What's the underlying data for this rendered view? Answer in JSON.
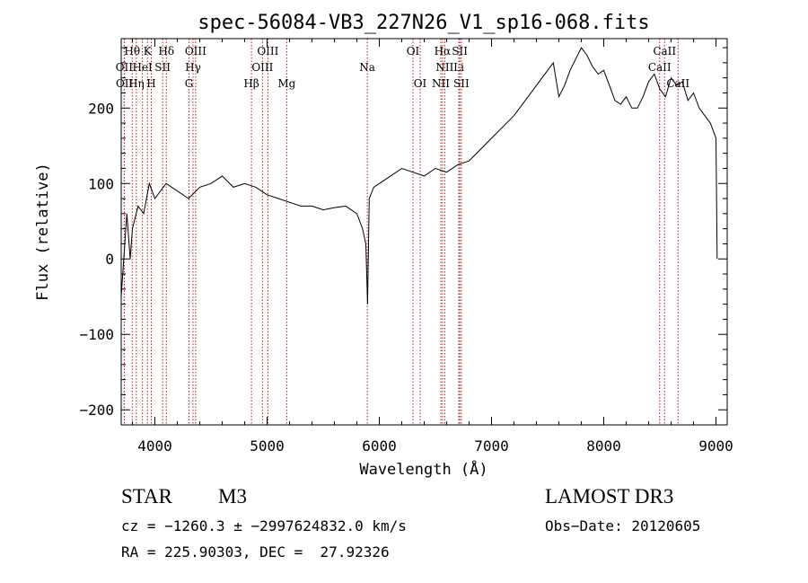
{
  "chart_data": {
    "type": "line",
    "title": "spec-56084-VB3_227N26_V1_sp16-068.fits",
    "xlabel": "Wavelength (Å)",
    "ylabel": "Flux (relative)",
    "xlim": [
      3700,
      9100
    ],
    "ylim": [
      -220,
      292
    ],
    "grid": false,
    "x_ticks": [
      4000,
      5000,
      6000,
      7000,
      8000,
      9000
    ],
    "y_ticks": [
      -200,
      -100,
      0,
      100,
      200
    ],
    "series": [
      {
        "x": [
          3700,
          3750,
          3780,
          3800,
          3850,
          3900,
          3950,
          4000,
          4100,
          4200,
          4300,
          4400,
          4500,
          4600,
          4700,
          4800,
          4900,
          5000,
          5100,
          5200,
          5300,
          5400,
          5500,
          5600,
          5700,
          5800,
          5850,
          5880,
          5895,
          5910,
          5950,
          6000,
          6100,
          6200,
          6300,
          6400,
          6500,
          6600,
          6700,
          6800,
          6900,
          7000,
          7100,
          7200,
          7300,
          7400,
          7500,
          7550,
          7600,
          7650,
          7700,
          7750,
          7800,
          7850,
          7900,
          7950,
          8000,
          8050,
          8100,
          8150,
          8200,
          8250,
          8300,
          8350,
          8400,
          8450,
          8500,
          8550,
          8600,
          8650,
          8700,
          8750,
          8800,
          8850,
          8900,
          8950,
          9000,
          9010
        ],
        "y": [
          -50,
          60,
          0,
          40,
          70,
          60,
          100,
          80,
          100,
          90,
          80,
          95,
          100,
          110,
          95,
          100,
          95,
          85,
          80,
          75,
          70,
          70,
          65,
          68,
          70,
          60,
          40,
          20,
          -60,
          80,
          95,
          100,
          110,
          120,
          115,
          110,
          120,
          115,
          125,
          130,
          145,
          160,
          175,
          190,
          210,
          230,
          250,
          260,
          215,
          230,
          250,
          265,
          280,
          270,
          255,
          245,
          250,
          230,
          210,
          205,
          215,
          200,
          200,
          215,
          235,
          245,
          225,
          215,
          240,
          230,
          235,
          210,
          220,
          200,
          190,
          180,
          160,
          0
        ]
      }
    ],
    "line_labels": [
      {
        "label": "Hθ",
        "x": 3798,
        "row": 0
      },
      {
        "label": "K",
        "x": 3934,
        "row": 0
      },
      {
        "label": "Hδ",
        "x": 4102,
        "row": 0
      },
      {
        "label": "OIII",
        "x": 4363,
        "row": 0
      },
      {
        "label": "OIII",
        "x": 5007,
        "row": 0
      },
      {
        "label": "OI",
        "x": 6300,
        "row": 0
      },
      {
        "label": "Hα",
        "x": 6563,
        "row": 0
      },
      {
        "label": "SII",
        "x": 6717,
        "row": 0
      },
      {
        "label": "CaII",
        "x": 8542,
        "row": 0
      },
      {
        "label": "OII",
        "x": 3727,
        "row": 1
      },
      {
        "label": "HeI",
        "x": 3889,
        "row": 1
      },
      {
        "label": "SII",
        "x": 4069,
        "row": 1
      },
      {
        "label": "Hγ",
        "x": 4340,
        "row": 1
      },
      {
        "label": "OIII",
        "x": 4959,
        "row": 1
      },
      {
        "label": "Na",
        "x": 5893,
        "row": 1
      },
      {
        "label": "NII",
        "x": 6583,
        "row": 1
      },
      {
        "label": "Li",
        "x": 6708,
        "row": 1
      },
      {
        "label": "CaII",
        "x": 8498,
        "row": 1
      },
      {
        "label": "OII",
        "x": 3729,
        "row": 2
      },
      {
        "label": "Hη",
        "x": 3835,
        "row": 2
      },
      {
        "label": "H",
        "x": 3968,
        "row": 2
      },
      {
        "label": "G",
        "x": 4304,
        "row": 2
      },
      {
        "label": "Hβ",
        "x": 4861,
        "row": 2
      },
      {
        "label": "Mg",
        "x": 5175,
        "row": 2
      },
      {
        "label": "OI",
        "x": 6364,
        "row": 2
      },
      {
        "label": "NII",
        "x": 6548,
        "row": 2
      },
      {
        "label": "SII",
        "x": 6731,
        "row": 2
      },
      {
        "label": "CaII",
        "x": 8662,
        "row": 2
      }
    ],
    "line_color": "#000000",
    "marker_line_color": "#b01c1c"
  },
  "info": {
    "object_class": "STAR",
    "subclass": "M3",
    "survey": "LAMOST DR3",
    "cz_line": "cz = −1260.3 ± −2997624832.0 km/s",
    "obs_date_line": "Obs−Date: 20120605",
    "radec_line": "RA = 225.90303, DEC =  27.92326"
  }
}
